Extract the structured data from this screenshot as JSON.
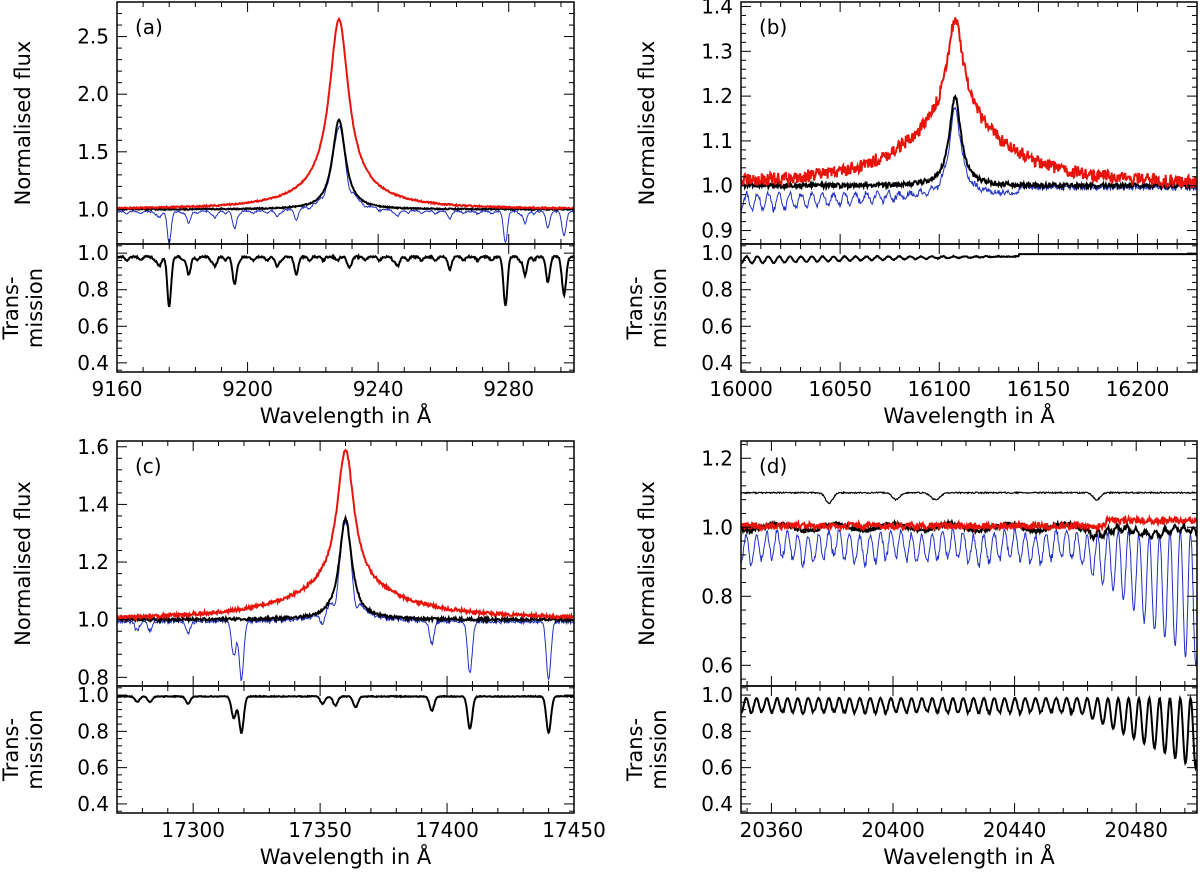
{
  "figure": {
    "ylabel_flux": "Normalised flux",
    "ylabel_trans_line1": "Trans-",
    "ylabel_trans_line2": "mission",
    "xlabel": "Wavelength in Å"
  },
  "colors": {
    "red_series": "#e8140c",
    "blue_series": "#2030c8",
    "black_series": "#000000",
    "transmission": "#000000"
  },
  "chart_data": [
    {
      "panel": "(a)",
      "type": "line",
      "xlim": [
        9160,
        9300
      ],
      "xticks": [
        9160,
        9200,
        9240,
        9280
      ],
      "flux_ylim": [
        0.7,
        2.8
      ],
      "flux_yticks": [
        1.0,
        1.5,
        2.0,
        2.5
      ],
      "trans_ylim": [
        0.35,
        1.05
      ],
      "trans_yticks": [
        0.4,
        0.6,
        0.8,
        1.0
      ],
      "line_center": 9228,
      "series": [
        {
          "name": "red",
          "peak": 2.65,
          "width": 3.5,
          "wing": 0.18,
          "wing_width": 14
        },
        {
          "name": "black",
          "peak": 1.78,
          "width": 2.4
        },
        {
          "name": "blue",
          "peak": 1.78,
          "width": 2.4
        }
      ],
      "telluric_absorption_lines": [
        9173,
        9176,
        9182,
        9190,
        9196,
        9209,
        9215,
        9231,
        9246,
        9262,
        9279,
        9285,
        9292,
        9297
      ],
      "telluric_depths": [
        0.05,
        0.25,
        0.1,
        0.05,
        0.15,
        0.05,
        0.08,
        0.05,
        0.05,
        0.05,
        0.25,
        0.1,
        0.12,
        0.2
      ]
    },
    {
      "panel": "(b)",
      "type": "line",
      "xlim": [
        16000,
        16230
      ],
      "xticks": [
        16000,
        16050,
        16100,
        16150,
        16200
      ],
      "flux_ylim": [
        0.87,
        1.41
      ],
      "flux_yticks": [
        0.9,
        1.0,
        1.1,
        1.2,
        1.3,
        1.4
      ],
      "trans_ylim": [
        0.35,
        1.05
      ],
      "trans_yticks": [
        0.4,
        0.6,
        0.8,
        1.0
      ],
      "line_center": 16108,
      "series": [
        {
          "name": "red",
          "peak": 1.37,
          "width": 5,
          "wing": 0.15,
          "wing_width": 30
        },
        {
          "name": "black",
          "peak": 1.2,
          "width": 3.5
        },
        {
          "name": "blue",
          "peak": 1.2,
          "width": 3.5
        }
      ],
      "telluric_absorption_lines": [
        16183
      ],
      "telluric_depths": [
        0.0
      ]
    },
    {
      "panel": "(c)",
      "type": "line",
      "xlim": [
        17270,
        17450
      ],
      "xticks": [
        17300,
        17350,
        17400,
        17450
      ],
      "flux_ylim": [
        0.77,
        1.62
      ],
      "flux_yticks": [
        0.8,
        1.0,
        1.2,
        1.4,
        1.6
      ],
      "trans_ylim": [
        0.35,
        1.05
      ],
      "trans_yticks": [
        0.4,
        0.6,
        0.8,
        1.0
      ],
      "line_center": 17360,
      "series": [
        {
          "name": "red",
          "peak": 1.59,
          "width": 4,
          "wing": 0.12,
          "wing_width": 25
        },
        {
          "name": "black",
          "peak": 1.35,
          "width": 3
        },
        {
          "name": "blue",
          "peak": 1.35,
          "width": 3
        }
      ],
      "telluric_absorption_lines": [
        17278,
        17283,
        17298,
        17316,
        17319,
        17351,
        17356,
        17364,
        17394,
        17409,
        17440
      ],
      "telluric_depths": [
        0.03,
        0.03,
        0.04,
        0.12,
        0.2,
        0.04,
        0.05,
        0.06,
        0.08,
        0.18,
        0.2
      ]
    },
    {
      "panel": "(d)",
      "type": "line",
      "xlim": [
        20350,
        20500
      ],
      "xticks": [
        20360,
        20400,
        20440,
        20480
      ],
      "flux_ylim": [
        0.54,
        1.25
      ],
      "flux_yticks": [
        0.6,
        0.8,
        1.0,
        1.2
      ],
      "trans_ylim": [
        0.35,
        1.05
      ],
      "trans_yticks": [
        0.4,
        0.6,
        0.8,
        1.0
      ],
      "offset_reference_level": 1.1,
      "series": [
        {
          "name": "red",
          "level": 1.0
        },
        {
          "name": "black",
          "level": 1.0
        },
        {
          "name": "blue",
          "level": 1.0
        },
        {
          "name": "offset-thin-black",
          "level": 1.1
        }
      ],
      "telluric_absorption_lines": [],
      "telluric_depths": []
    }
  ]
}
